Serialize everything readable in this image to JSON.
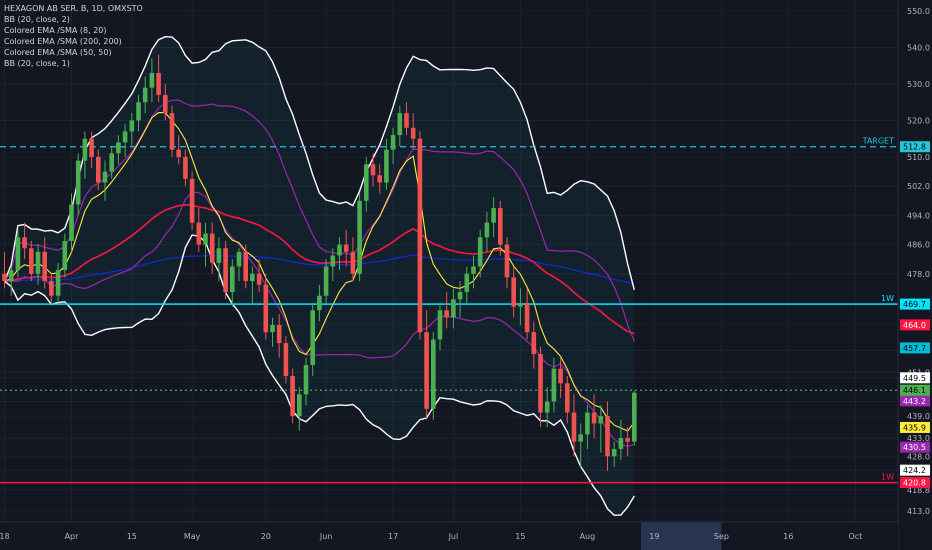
{
  "chart_data": {
    "type": "candlestick",
    "symbol_line": "HEXAGON AB SER. B, 1D, OMXSTO",
    "legend": [
      "BB (20, close, 2)",
      "Colored EMA /SMA (8, 20)",
      "Colored EMA /SMA (200, 200)",
      "Colored EMA /SMA (50, 50)",
      "BB (20, close, 1)"
    ],
    "ylim": [
      410.0,
      553.0
    ],
    "y_ticks": [
      550.0,
      540.0,
      530.0,
      520.0,
      510.0,
      502.0,
      494.0,
      486.0,
      478.0,
      470.0,
      464.0,
      457.0,
      451.0,
      449.5,
      443.0,
      439.0,
      433.0,
      428.0,
      424.2,
      418.8,
      413.0
    ],
    "y_tick_labels": [
      "550.0",
      "540.0",
      "530.0",
      "520.0",
      "510.0",
      "502.0",
      "494.0",
      "486.0",
      "478.0",
      "",
      "",
      "",
      "451.0",
      "",
      "",
      "439.0",
      "433.0",
      "428.0",
      "",
      "418.8",
      "413.0"
    ],
    "x_labels": [
      "18",
      "Apr",
      "15",
      "May",
      "20",
      "Jun",
      "17",
      "Jul",
      "15",
      "Aug",
      "19",
      "Sep",
      "16",
      "Oct"
    ],
    "x_label_days": [
      0,
      10,
      19,
      28,
      39,
      48,
      58,
      67,
      77,
      87,
      97,
      107,
      117,
      127
    ],
    "x_highlight_days": [
      95,
      107
    ],
    "levels": [
      {
        "value": 512.8,
        "label": "TARGET",
        "price": "512.8",
        "color": "#26c6da",
        "style": "dashed"
      },
      {
        "value": 469.7,
        "label": "1W",
        "price": "469.7",
        "color": "#00e5ff",
        "style": "solid"
      },
      {
        "value": 420.8,
        "label": "1W",
        "price": "420.8",
        "color": "#ff1744",
        "style": "solid"
      },
      {
        "value": 446.1,
        "label": "",
        "price": "446.1",
        "color": "#4caf50",
        "style": "dotted"
      }
    ],
    "price_tags": [
      {
        "value": 464.0,
        "text": "464.0",
        "bg": "#ff1744",
        "fg": "#ffffff"
      },
      {
        "value": 457.7,
        "text": "457.7",
        "bg": "#00bcd4",
        "fg": "#000000"
      },
      {
        "value": 449.5,
        "text": "449.5",
        "bg": "#ffffff",
        "fg": "#000000"
      },
      {
        "value": 443.2,
        "text": "443.2",
        "bg": "#9c27b0",
        "fg": "#ffffff"
      },
      {
        "value": 435.9,
        "text": "435.9",
        "bg": "#ffeb3b",
        "fg": "#000000"
      },
      {
        "value": 430.5,
        "text": "430.5",
        "bg": "#9c27b0",
        "fg": "#ffffff"
      },
      {
        "value": 424.2,
        "text": "424.2",
        "bg": "#ffffff",
        "fg": "#000000"
      }
    ],
    "candles": [
      [
        0,
        478,
        484,
        474,
        476
      ],
      [
        1,
        476,
        480,
        472,
        479
      ],
      [
        2,
        479,
        490,
        477,
        488
      ],
      [
        3,
        488,
        492,
        482,
        485
      ],
      [
        4,
        485,
        487,
        476,
        478
      ],
      [
        5,
        478,
        486,
        475,
        484
      ],
      [
        6,
        484,
        488,
        474,
        476
      ],
      [
        7,
        476,
        478,
        470,
        472
      ],
      [
        8,
        472,
        481,
        470,
        479
      ],
      [
        9,
        479,
        489,
        477,
        487
      ],
      [
        10,
        487,
        500,
        484,
        497
      ],
      [
        11,
        497,
        511,
        494,
        509
      ],
      [
        12,
        509,
        517,
        504,
        515
      ],
      [
        13,
        515,
        517,
        507,
        510
      ],
      [
        14,
        510,
        512,
        501,
        503
      ],
      [
        15,
        503,
        509,
        498,
        506
      ],
      [
        16,
        506,
        513,
        504,
        511
      ],
      [
        17,
        511,
        516,
        508,
        514
      ],
      [
        18,
        514,
        519,
        510,
        517
      ],
      [
        19,
        517,
        522,
        513,
        520
      ],
      [
        20,
        520,
        527,
        517,
        525
      ],
      [
        21,
        525,
        532,
        522,
        529
      ],
      [
        22,
        529,
        537,
        525,
        533
      ],
      [
        23,
        533,
        538,
        525,
        527
      ],
      [
        24,
        527,
        530,
        520,
        522
      ],
      [
        25,
        522,
        524,
        510,
        512
      ],
      [
        26,
        512,
        516,
        508,
        510
      ],
      [
        27,
        510,
        512,
        502,
        504
      ],
      [
        28,
        504,
        506,
        490,
        492
      ],
      [
        29,
        492,
        496,
        484,
        486
      ],
      [
        30,
        486,
        492,
        480,
        489
      ],
      [
        31,
        489,
        492,
        478,
        481
      ],
      [
        32,
        481,
        488,
        476,
        485
      ],
      [
        33,
        485,
        487,
        471,
        473
      ],
      [
        34,
        473,
        482,
        469,
        480
      ],
      [
        35,
        480,
        485,
        476,
        484
      ],
      [
        36,
        484,
        486,
        474,
        476
      ],
      [
        37,
        476,
        480,
        470,
        478
      ],
      [
        38,
        478,
        482,
        473,
        475
      ],
      [
        39,
        475,
        478,
        460,
        462
      ],
      [
        40,
        462,
        466,
        458,
        464
      ],
      [
        41,
        464,
        467,
        455,
        459
      ],
      [
        42,
        459,
        461,
        448,
        450
      ],
      [
        43,
        450,
        452,
        437,
        439
      ],
      [
        44,
        439,
        447,
        435,
        445
      ],
      [
        45,
        445,
        455,
        442,
        453
      ],
      [
        46,
        453,
        470,
        450,
        468
      ],
      [
        47,
        468,
        475,
        465,
        472
      ],
      [
        48,
        472,
        482,
        470,
        480
      ],
      [
        49,
        480,
        485,
        476,
        483
      ],
      [
        50,
        483,
        488,
        479,
        486
      ],
      [
        51,
        486,
        490,
        480,
        484
      ],
      [
        52,
        484,
        488,
        476,
        478
      ],
      [
        53,
        478,
        500,
        476,
        498
      ],
      [
        54,
        498,
        510,
        495,
        508
      ],
      [
        55,
        508,
        511,
        502,
        505
      ],
      [
        56,
        505,
        508,
        500,
        503
      ],
      [
        57,
        503,
        515,
        501,
        512
      ],
      [
        58,
        512,
        518,
        508,
        516
      ],
      [
        59,
        516,
        524,
        513,
        522
      ],
      [
        60,
        522,
        525,
        516,
        518
      ],
      [
        61,
        518,
        522,
        512,
        515
      ],
      [
        62,
        515,
        517,
        460,
        462
      ],
      [
        63,
        462,
        468,
        438,
        441
      ],
      [
        64,
        441,
        462,
        438,
        460
      ],
      [
        65,
        460,
        470,
        457,
        468
      ],
      [
        66,
        468,
        473,
        463,
        466
      ],
      [
        67,
        466,
        474,
        463,
        471
      ],
      [
        68,
        471,
        476,
        466,
        473
      ],
      [
        69,
        473,
        480,
        470,
        478
      ],
      [
        70,
        478,
        483,
        474,
        480
      ],
      [
        71,
        480,
        490,
        477,
        488
      ],
      [
        72,
        488,
        495,
        484,
        492
      ],
      [
        73,
        492,
        499,
        488,
        496
      ],
      [
        74,
        496,
        498,
        483,
        486
      ],
      [
        75,
        486,
        488,
        474,
        477
      ],
      [
        76,
        477,
        480,
        466,
        469
      ],
      [
        77,
        469,
        474,
        464,
        470
      ],
      [
        78,
        470,
        474,
        460,
        462
      ],
      [
        79,
        462,
        465,
        452,
        456
      ],
      [
        80,
        456,
        458,
        436,
        440
      ],
      [
        81,
        440,
        447,
        436,
        443
      ],
      [
        82,
        443,
        455,
        440,
        452
      ],
      [
        83,
        452,
        455,
        444,
        448
      ],
      [
        84,
        448,
        450,
        437,
        440
      ],
      [
        85,
        440,
        445,
        428,
        432
      ],
      [
        86,
        432,
        437,
        425,
        434
      ],
      [
        87,
        434,
        442,
        430,
        440
      ],
      [
        88,
        440,
        445,
        433,
        437
      ],
      [
        89,
        437,
        442,
        429,
        439
      ],
      [
        90,
        439,
        443,
        424,
        428
      ],
      [
        91,
        428,
        432,
        425,
        430
      ],
      [
        92,
        430,
        438,
        427,
        433
      ],
      [
        93,
        433,
        436,
        428,
        432
      ],
      [
        94,
        432,
        446,
        431,
        445.4
      ]
    ]
  }
}
